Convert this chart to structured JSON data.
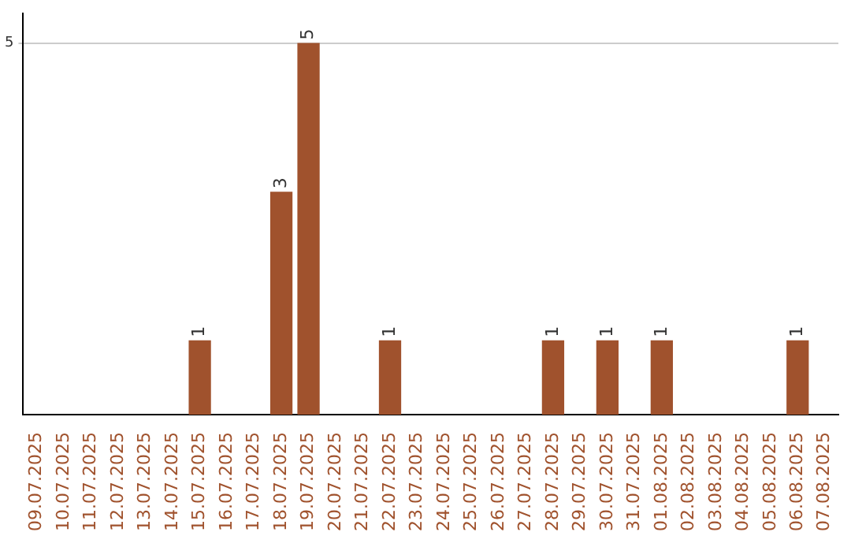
{
  "chart_data": {
    "type": "bar",
    "categories": [
      "09.07.2025",
      "10.07.2025",
      "11.07.2025",
      "12.07.2025",
      "13.07.2025",
      "14.07.2025",
      "15.07.2025",
      "16.07.2025",
      "17.07.2025",
      "18.07.2025",
      "19.07.2025",
      "20.07.2025",
      "21.07.2025",
      "22.07.2025",
      "23.07.2025",
      "24.07.2025",
      "25.07.2025",
      "26.07.2025",
      "27.07.2025",
      "28.07.2025",
      "29.07.2025",
      "30.07.2025",
      "31.07.2025",
      "01.08.2025",
      "02.08.2025",
      "03.08.2025",
      "04.08.2025",
      "05.08.2025",
      "06.08.2025",
      "07.08.2025"
    ],
    "values": [
      0,
      0,
      0,
      0,
      0,
      0,
      1,
      0,
      0,
      3,
      5,
      0,
      0,
      1,
      0,
      0,
      0,
      0,
      0,
      1,
      0,
      1,
      0,
      1,
      0,
      0,
      0,
      0,
      1,
      0
    ],
    "value_labels": [
      null,
      null,
      null,
      null,
      null,
      null,
      "1",
      null,
      null,
      "3",
      "5",
      null,
      null,
      "1",
      null,
      null,
      null,
      null,
      null,
      "1",
      null,
      "1",
      null,
      "1",
      null,
      null,
      null,
      null,
      "1",
      null
    ],
    "color": "#a0522d",
    "ylim": [
      0,
      5.4
    ],
    "yticks": [
      5
    ],
    "grid": "y",
    "legend": false
  }
}
